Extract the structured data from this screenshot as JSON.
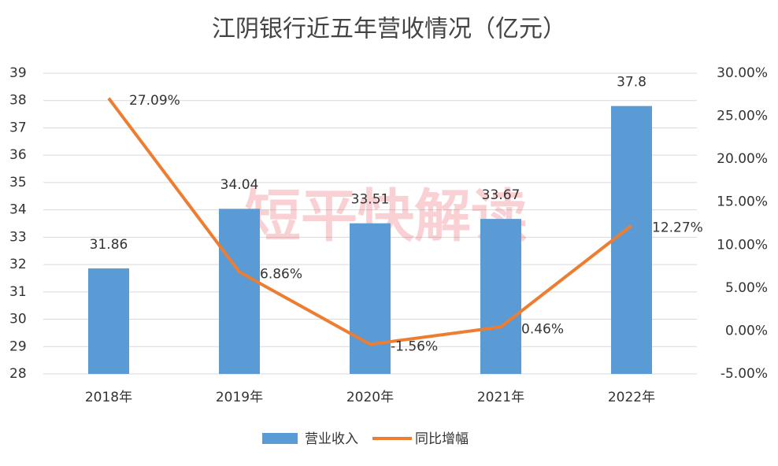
{
  "chart_data": {
    "type": "bar",
    "title": "江阴银行近五年营收情况（亿元）",
    "watermark": "短平快解读",
    "categories": [
      "2018年",
      "2019年",
      "2020年",
      "2021年",
      "2022年"
    ],
    "series": [
      {
        "name": "营业收入",
        "type": "bar",
        "color": "#5b9bd5",
        "values": [
          31.86,
          34.04,
          33.51,
          33.67,
          37.8
        ]
      },
      {
        "name": "同比增幅",
        "type": "line",
        "axis": "y2",
        "color": "#ed7d31",
        "values": [
          27.09,
          6.86,
          -1.56,
          0.46,
          12.27
        ],
        "value_labels": [
          "27.09%",
          "6.86%",
          "-1.56%",
          "0.46%",
          "12.27%"
        ]
      }
    ],
    "ylim": [
      28,
      39
    ],
    "yticks": [
      28,
      29,
      30,
      31,
      32,
      33,
      34,
      35,
      36,
      37,
      38,
      39
    ],
    "y2lim": [
      -5,
      30
    ],
    "y2ticks": [
      {
        "value": -5,
        "label": "-5.00%"
      },
      {
        "value": 0,
        "label": "0.00%"
      },
      {
        "value": 5,
        "label": "5.00%"
      },
      {
        "value": 10,
        "label": "10.00%"
      },
      {
        "value": 15,
        "label": "15.00%"
      },
      {
        "value": 20,
        "label": "20.00%"
      },
      {
        "value": 25,
        "label": "25.00%"
      },
      {
        "value": 30,
        "label": "30.00%"
      }
    ],
    "grid": true,
    "legend": "bottom"
  }
}
